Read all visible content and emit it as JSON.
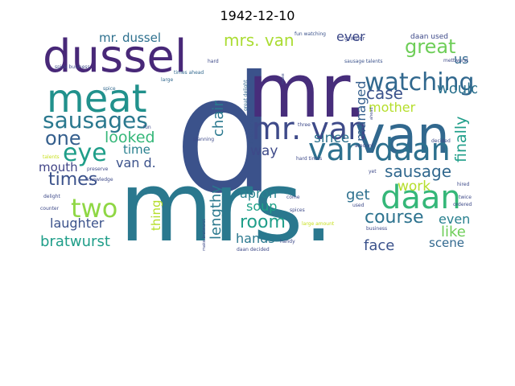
{
  "title": "1942-12-10",
  "words": [
    {
      "text": "d",
      "color": "#3b528b",
      "vertical": false
    },
    {
      "text": "mr.",
      "color": "#472d7b",
      "vertical": false
    },
    {
      "text": "mrs.",
      "color": "#2a788e",
      "vertical": false
    },
    {
      "text": "dussel",
      "color": "#482878",
      "vertical": false
    },
    {
      "text": "meat",
      "color": "#21918c",
      "vertical": false
    },
    {
      "text": "van",
      "color": "#31688e",
      "vertical": false
    },
    {
      "text": "mr. van",
      "color": "#3e4a89",
      "vertical": false
    },
    {
      "text": "van daan",
      "color": "#2d708e",
      "vertical": false
    },
    {
      "text": "sausages",
      "color": "#2a788e",
      "vertical": false
    },
    {
      "text": "watching",
      "color": "#31688e",
      "vertical": false
    },
    {
      "text": "eye",
      "color": "#1f9e89",
      "vertical": false
    },
    {
      "text": "one",
      "color": "#355f8d",
      "vertical": false
    },
    {
      "text": "daan",
      "color": "#35b779",
      "vertical": false
    },
    {
      "text": "two",
      "color": "#8fd744",
      "vertical": false
    },
    {
      "text": "times",
      "color": "#3b528b",
      "vertical": false
    },
    {
      "text": "mrs. van",
      "color": "#aadc32",
      "vertical": false
    },
    {
      "text": "great",
      "color": "#6ece58",
      "vertical": false
    },
    {
      "text": "ever",
      "color": "#3e4a89",
      "vertical": false
    },
    {
      "text": "us",
      "color": "#31688e",
      "vertical": false
    },
    {
      "text": "mr. dussel",
      "color": "#2d708e",
      "vertical": false
    },
    {
      "text": "case",
      "color": "#3b528b",
      "vertical": false
    },
    {
      "text": "would",
      "color": "#2c728e",
      "vertical": false
    },
    {
      "text": "managed",
      "color": "#355f8d",
      "vertical": true
    },
    {
      "text": "mother",
      "color": "#b5de2b",
      "vertical": false
    },
    {
      "text": "finally",
      "color": "#1f9e89",
      "vertical": true
    },
    {
      "text": "chair",
      "color": "#2a788e",
      "vertical": true
    },
    {
      "text": "looked",
      "color": "#35b779",
      "vertical": false
    },
    {
      "text": "time",
      "color": "#277f8e",
      "vertical": false
    },
    {
      "text": "since",
      "color": "#2c728e",
      "vertical": false
    },
    {
      "text": "sausage",
      "color": "#31688e",
      "vertical": false
    },
    {
      "text": "way",
      "color": "#3e4a89",
      "vertical": false
    },
    {
      "text": "mouth",
      "color": "#414487",
      "vertical": false
    },
    {
      "text": "van d.",
      "color": "#3b528b",
      "vertical": false
    },
    {
      "text": "work",
      "color": "#b5de2b",
      "vertical": false
    },
    {
      "text": "lengthy",
      "color": "#2a788e",
      "vertical": true
    },
    {
      "text": "apron",
      "color": "#26828e",
      "vertical": false
    },
    {
      "text": "get",
      "color": "#2d708e",
      "vertical": false
    },
    {
      "text": "soup",
      "color": "#1fa188",
      "vertical": false
    },
    {
      "text": "course",
      "color": "#2c728e",
      "vertical": false
    },
    {
      "text": "even",
      "color": "#277f8e",
      "vertical": false
    },
    {
      "text": "room",
      "color": "#1f9e89",
      "vertical": false
    },
    {
      "text": "laughter",
      "color": "#3b528b",
      "vertical": false
    },
    {
      "text": "thing",
      "color": "#b5de2b",
      "vertical": true
    },
    {
      "text": "like",
      "color": "#6ece58",
      "vertical": false
    },
    {
      "text": "hands",
      "color": "#2a788e",
      "vertical": false
    },
    {
      "text": "face",
      "color": "#3b528b",
      "vertical": false
    },
    {
      "text": "bratwurst",
      "color": "#1f9e89",
      "vertical": false
    },
    {
      "text": "scene",
      "color": "#31688e",
      "vertical": false
    },
    {
      "text": "daan used",
      "color": "#3e4a89",
      "vertical": false
    },
    {
      "text": "grinder",
      "color": "#3e4a89",
      "vertical": false
    },
    {
      "text": "fun watching",
      "color": "#3b528b",
      "vertical": false
    },
    {
      "text": "hard",
      "color": "#3e4a89",
      "vertical": false
    },
    {
      "text": "spice business",
      "color": "#3e4a89",
      "vertical": false
    },
    {
      "text": "spice",
      "color": "#31688e",
      "vertical": false
    },
    {
      "text": "times ahead",
      "color": "#31688e",
      "vertical": false
    },
    {
      "text": "large",
      "color": "#31688e",
      "vertical": false
    },
    {
      "text": "make",
      "color": "#3e4a89",
      "vertical": true
    },
    {
      "text": "sausage talents",
      "color": "#3b528b",
      "vertical": false
    },
    {
      "text": "great delight",
      "color": "#31688e",
      "vertical": true
    },
    {
      "text": "three times",
      "color": "#3b528b",
      "vertical": true
    },
    {
      "text": "fun",
      "color": "#3e4a89",
      "vertical": false
    },
    {
      "text": "planning",
      "color": "#3e4a89",
      "vertical": false
    },
    {
      "text": "three",
      "color": "#3e4a89",
      "vertical": false
    },
    {
      "text": "ahead",
      "color": "#3e4a89",
      "vertical": true
    },
    {
      "text": "amount",
      "color": "#3e4a89",
      "vertical": false
    },
    {
      "text": "decided",
      "color": "#3e4a89",
      "vertical": false
    },
    {
      "text": "mettwurst",
      "color": "#3e4a89",
      "vertical": false
    },
    {
      "text": "talents",
      "color": "#c8e020",
      "vertical": false
    },
    {
      "text": "preserve",
      "color": "#3e4a89",
      "vertical": false
    },
    {
      "text": "knowledge",
      "color": "#3e4a89",
      "vertical": false
    },
    {
      "text": "hard times",
      "color": "#3e4a89",
      "vertical": false
    },
    {
      "text": "yet",
      "color": "#3e4a89",
      "vertical": false
    },
    {
      "text": "hired",
      "color": "#3e4a89",
      "vertical": false
    },
    {
      "text": "delight",
      "color": "#3e4a89",
      "vertical": false
    },
    {
      "text": "come",
      "color": "#3e4a89",
      "vertical": false
    },
    {
      "text": "twice",
      "color": "#3e4a89",
      "vertical": false
    },
    {
      "text": "counter",
      "color": "#3e4a89",
      "vertical": false
    },
    {
      "text": "spices",
      "color": "#3e4a89",
      "vertical": false
    },
    {
      "text": "used",
      "color": "#3e4a89",
      "vertical": false
    },
    {
      "text": "ordered",
      "color": "#3e4a89",
      "vertical": false
    },
    {
      "text": "make bratwurst",
      "color": "#3e4a89",
      "vertical": true
    },
    {
      "text": "large amount",
      "color": "#c8e020",
      "vertical": false
    },
    {
      "text": "business",
      "color": "#3e4a89",
      "vertical": false
    },
    {
      "text": "handy",
      "color": "#3e4a89",
      "vertical": false
    },
    {
      "text": "daan decided",
      "color": "#3e4a89",
      "vertical": false
    }
  ]
}
